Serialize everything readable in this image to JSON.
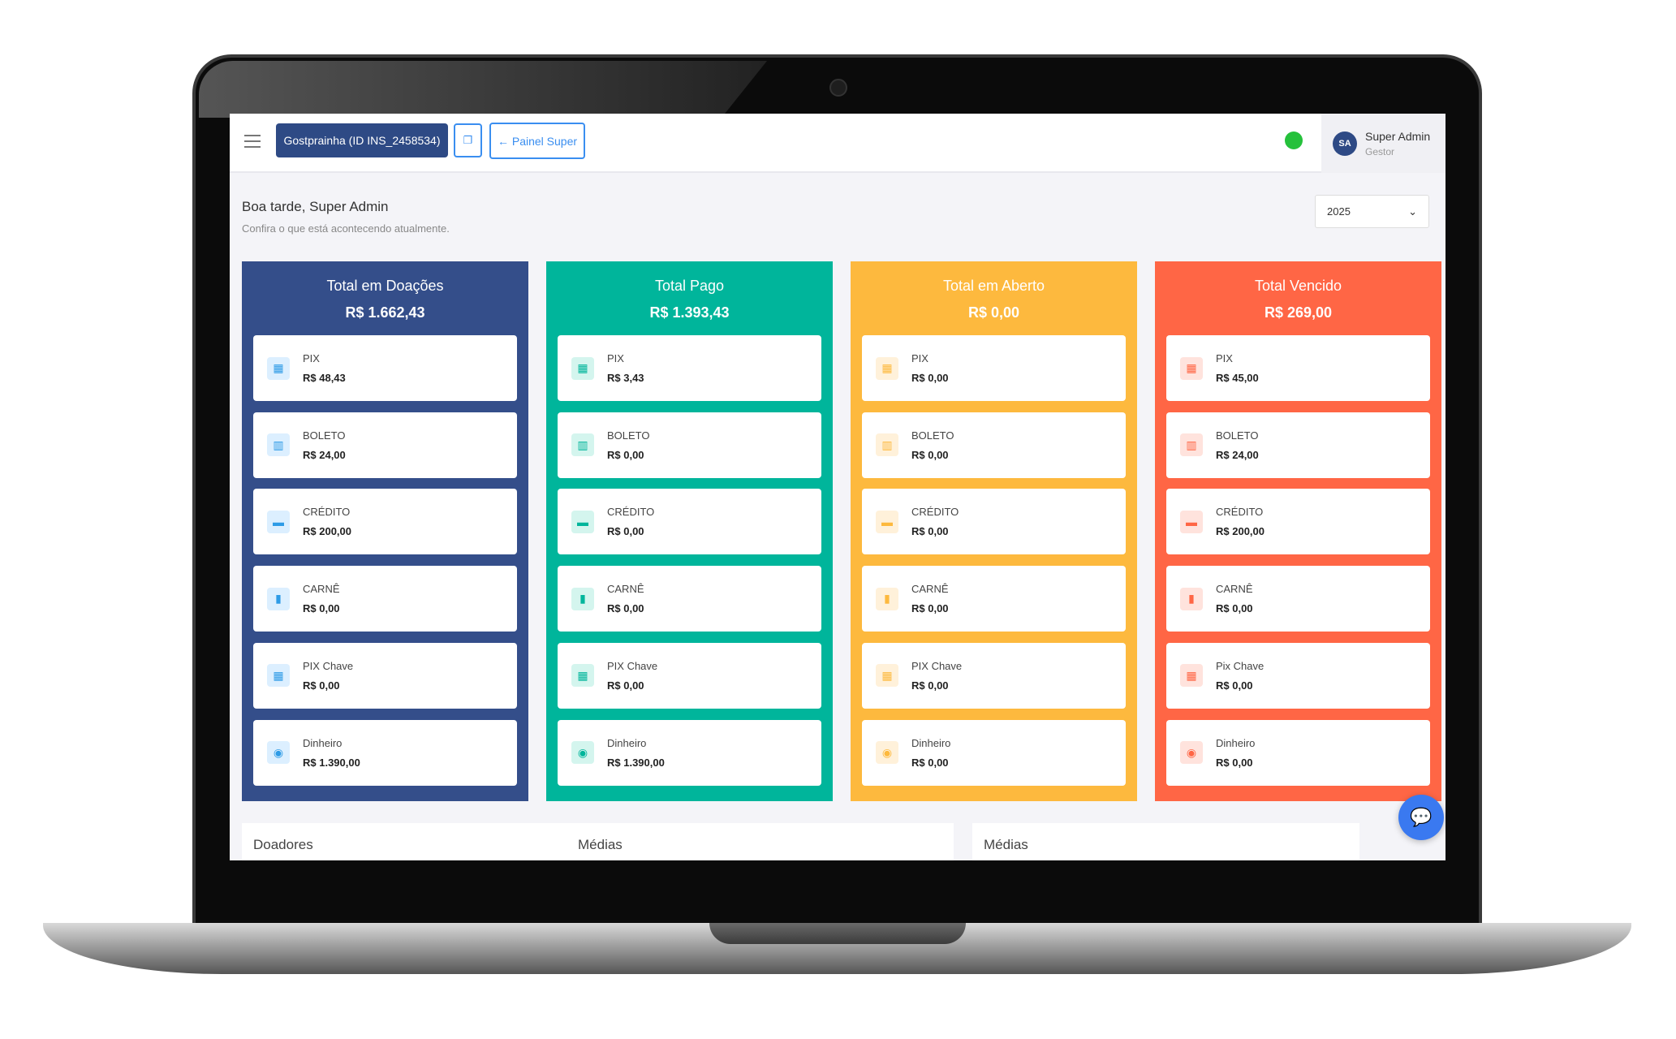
{
  "header": {
    "org_button": "Gostprainha (ID INS_2458534)",
    "copy_icon": "copy-icon",
    "painel_button": "← Painel Super",
    "user_initials": "SA",
    "user_name": "Super Admin",
    "user_role": "Gestor"
  },
  "greeting": {
    "title": "Boa tarde, Super Admin",
    "subtitle": "Confira o que está acontecendo atualmente."
  },
  "year_select": {
    "value": "2025"
  },
  "columns": [
    {
      "title": "Total em Doações",
      "amount": "R$ 1.662,43",
      "color": "#344e8a",
      "icon_bg": "#dcefff",
      "icon_color": "#2e9be6",
      "items": [
        {
          "label": "PIX",
          "value": "R$ 48,43"
        },
        {
          "label": "BOLETO",
          "value": "R$ 24,00"
        },
        {
          "label": "CRÉDITO",
          "value": "R$ 200,00"
        },
        {
          "label": "CARNÊ",
          "value": "R$ 0,00"
        },
        {
          "label": "PIX Chave",
          "value": "R$ 0,00"
        },
        {
          "label": "Dinheiro",
          "value": "R$ 1.390,00"
        }
      ]
    },
    {
      "title": "Total Pago",
      "amount": "R$ 1.393,43",
      "color": "#00b59b",
      "icon_bg": "#d4f5ee",
      "icon_color": "#00b59b",
      "items": [
        {
          "label": "PIX",
          "value": "R$ 3,43"
        },
        {
          "label": "BOLETO",
          "value": "R$ 0,00"
        },
        {
          "label": "CRÉDITO",
          "value": "R$ 0,00"
        },
        {
          "label": "CARNÊ",
          "value": "R$ 0,00"
        },
        {
          "label": "PIX Chave",
          "value": "R$ 0,00"
        },
        {
          "label": "Dinheiro",
          "value": "R$ 1.390,00"
        }
      ]
    },
    {
      "title": "Total em Aberto",
      "amount": "R$ 0,00",
      "color": "#fdb93e",
      "icon_bg": "#fff1da",
      "icon_color": "#fdb93e",
      "items": [
        {
          "label": "PIX",
          "value": "R$ 0,00"
        },
        {
          "label": "BOLETO",
          "value": "R$ 0,00"
        },
        {
          "label": "CRÉDITO",
          "value": "R$ 0,00"
        },
        {
          "label": "CARNÊ",
          "value": "R$ 0,00"
        },
        {
          "label": "PIX Chave",
          "value": "R$ 0,00"
        },
        {
          "label": "Dinheiro",
          "value": "R$ 0,00"
        }
      ]
    },
    {
      "title": "Total Vencido",
      "amount": "R$ 269,00",
      "color": "#ff6645",
      "icon_bg": "#ffe3dd",
      "icon_color": "#ff6645",
      "items": [
        {
          "label": "PIX",
          "value": "R$ 45,00"
        },
        {
          "label": "BOLETO",
          "value": "R$ 24,00"
        },
        {
          "label": "CRÉDITO",
          "value": "R$ 200,00"
        },
        {
          "label": "CARNÊ",
          "value": "R$ 0,00"
        },
        {
          "label": "Pix Chave",
          "value": "R$ 0,00"
        },
        {
          "label": "Dinheiro",
          "value": "R$ 0,00"
        }
      ]
    }
  ],
  "item_icons": [
    "qr-code-icon",
    "barcode-icon",
    "credit-card-icon",
    "carne-icon",
    "pix-key-icon",
    "money-icon"
  ],
  "panels": [
    "Doadores",
    "Médias",
    "Médias"
  ]
}
